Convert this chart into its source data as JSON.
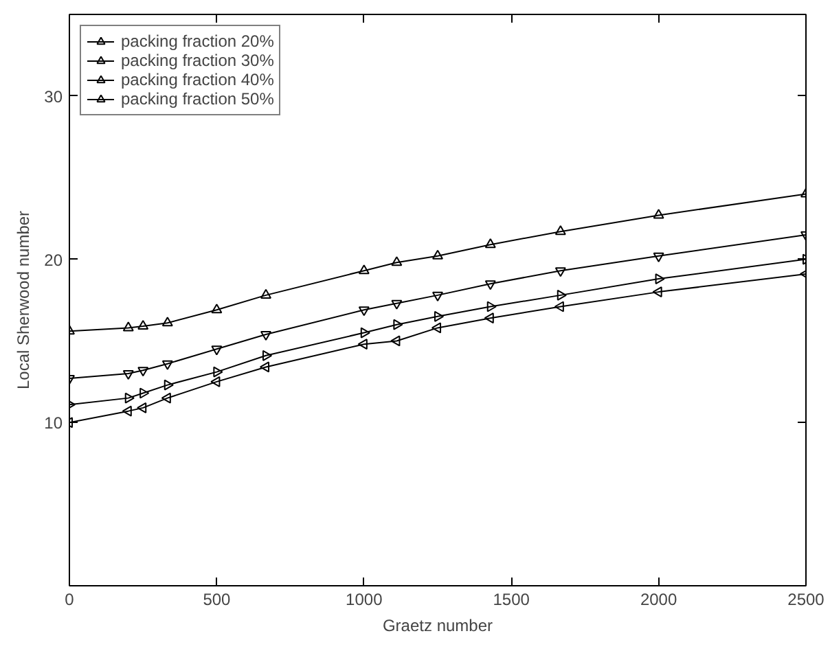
{
  "chart_data": {
    "type": "line",
    "xlabel": "Graetz number",
    "ylabel": "Local Sherwood number",
    "x": [
      0,
      200,
      250,
      333,
      500,
      667,
      1000,
      1111,
      1250,
      1429,
      1667,
      2000,
      2500
    ],
    "xlim": [
      0,
      2500
    ],
    "xticks": [
      0,
      500,
      1000,
      1500,
      2000,
      2500
    ],
    "ylim": [
      0,
      35
    ],
    "yticks": [
      10,
      20,
      30
    ],
    "grid": false,
    "legend": "top left",
    "line_style": "solid",
    "marker": "triangle",
    "series": [
      {
        "name": "packing fraction 20%",
        "color": "#000000",
        "values": [
          15.6,
          15.8,
          15.9,
          16.1,
          16.9,
          17.8,
          19.3,
          19.8,
          20.2,
          20.9,
          21.7,
          22.7,
          24.0
        ]
      },
      {
        "name": "packing fraction 30%",
        "color": "#000000",
        "values": [
          12.7,
          13.0,
          13.2,
          13.6,
          14.5,
          15.4,
          16.9,
          17.3,
          17.8,
          18.5,
          19.3,
          20.2,
          21.5
        ]
      },
      {
        "name": "packing fraction 40%",
        "color": "#000000",
        "values": [
          11.1,
          11.5,
          11.8,
          12.3,
          13.1,
          14.1,
          15.5,
          16.0,
          16.5,
          17.1,
          17.8,
          18.8,
          20.0
        ]
      },
      {
        "name": "packing fraction 50%",
        "color": "#000000",
        "values": [
          10.0,
          10.7,
          10.9,
          11.5,
          12.5,
          13.4,
          14.8,
          15.0,
          15.8,
          16.4,
          17.1,
          18.0,
          19.1
        ]
      }
    ]
  }
}
